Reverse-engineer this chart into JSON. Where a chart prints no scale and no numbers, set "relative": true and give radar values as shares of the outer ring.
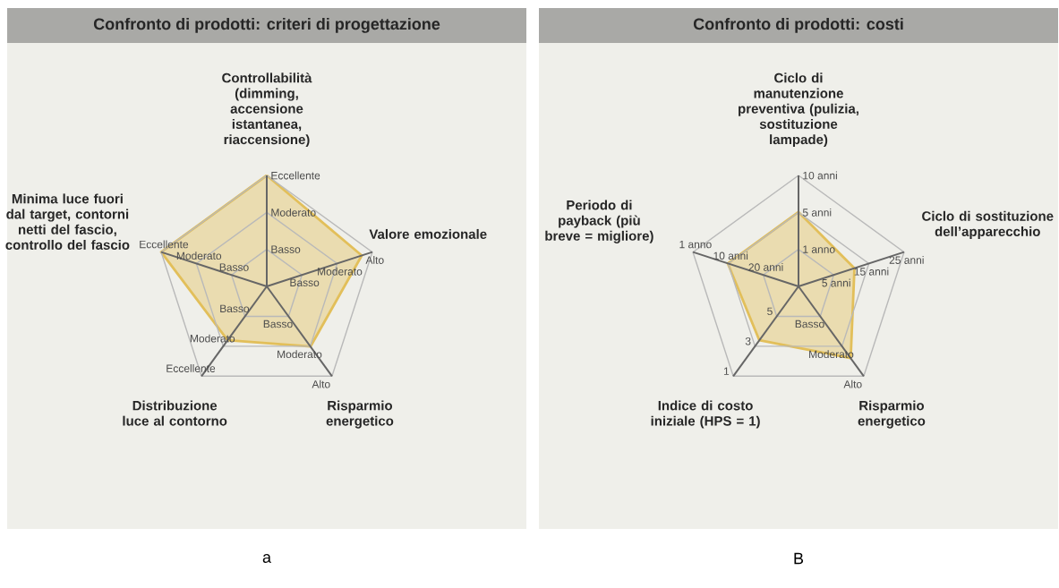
{
  "chart_data": [
    {
      "type": "radar",
      "title": "Confronto di prodotti: criteri di progettazione",
      "relative": true,
      "categories": [
        "Controllabilità (dimming, accensione istantanea, riaccensione)",
        "Valore emozionale",
        "Risparmio energetico",
        "Distribuzione luce al contorno",
        "Minima luce fuori dal target, contorni netti del fascio, controllo del fascio"
      ],
      "series": [
        {
          "color": "#e2bf5a",
          "values": [
            1,
            0.9,
            0.67,
            0.6,
            1
          ]
        }
      ],
      "grid": true,
      "annotations": [
        {
          "text": "Basso",
          "x": "Controllabilità (dimming, accensione istantanea, riaccensione)"
        },
        {
          "text": "Moderato",
          "x": "Controllabilità (dimming, accensione istantanea, riaccensione)"
        },
        {
          "text": "Eccellente",
          "x": "Controllabilità (dimming, accensione istantanea, riaccensione)"
        },
        {
          "text": "Basso",
          "x": "Valore emozionale"
        },
        {
          "text": "Moderato",
          "x": "Valore emozionale"
        },
        {
          "text": "Alto",
          "x": "Valore emozionale"
        },
        {
          "text": "Basso",
          "x": "Risparmio energetico"
        },
        {
          "text": "Moderato",
          "x": "Risparmio energetico"
        },
        {
          "text": "Alto",
          "x": "Risparmio energetico"
        },
        {
          "text": "Basso",
          "x": "Distribuzione luce al contorno"
        },
        {
          "text": "Moderato",
          "x": "Distribuzione luce al contorno"
        },
        {
          "text": "Eccellente",
          "x": "Distribuzione luce al contorno"
        },
        {
          "text": "Basso",
          "x": "Minima luce fuori dal target, contorni netti del fascio, controllo del fascio"
        },
        {
          "text": "Moderato",
          "x": "Minima luce fuori dal target, contorni netti del fascio, controllo del fascio"
        },
        {
          "text": "Eccellente",
          "x": "Minima luce fuori dal target, contorni netti del fascio, controllo del fascio"
        },
        "a"
      ]
    },
    {
      "type": "radar",
      "title": "Confronto di prodotti: costi",
      "relative": true,
      "categories": [
        "Ciclo di manutenzione preventiva (pulizia, sostituzione lampade)",
        "Ciclo di sostituzione dell’apparecchio",
        "Risparmio energetico",
        "Indice di costo iniziale (HPS = 1)",
        "Periodo di payback (più breve = migliore)"
      ],
      "series": [
        {
          "color": "#e2bf5a",
          "values": [
            0.67,
            0.53,
            0.8,
            0.6,
            0.67
          ]
        }
      ],
      "grid": true,
      "annotations": [
        {
          "text": "1 anno",
          "x": "Ciclo di manutenzione preventiva (pulizia, sostituzione lampade)"
        },
        {
          "text": "5 anni",
          "x": "Ciclo di manutenzione preventiva (pulizia, sostituzione lampade)"
        },
        {
          "text": "10 anni",
          "x": "Ciclo di manutenzione preventiva (pulizia, sostituzione lampade)"
        },
        {
          "text": "5 anni",
          "x": "Ciclo di sostituzione dell’apparecchio"
        },
        {
          "text": "15 anni",
          "x": "Ciclo di sostituzione dell’apparecchio"
        },
        {
          "text": "25 anni",
          "x": "Ciclo di sostituzione dell’apparecchio"
        },
        {
          "text": "Basso",
          "x": "Risparmio energetico"
        },
        {
          "text": "Moderato",
          "x": "Risparmio energetico"
        },
        {
          "text": "Alto",
          "x": "Risparmio energetico"
        },
        {
          "text": "5",
          "x": "Indice di costo iniziale (HPS = 1)"
        },
        {
          "text": "3",
          "x": "Indice di costo iniziale (HPS = 1)"
        },
        {
          "text": "1",
          "x": "Indice di costo iniziale (HPS = 1)"
        },
        {
          "text": "20 anni",
          "x": "Periodo di payback (più breve = migliore)"
        },
        {
          "text": "10 anni",
          "x": "Periodo di payback (più breve = migliore)"
        },
        {
          "text": "1 anno",
          "x": "Periodo di payback (più breve = migliore)"
        },
        "B"
      ]
    }
  ]
}
